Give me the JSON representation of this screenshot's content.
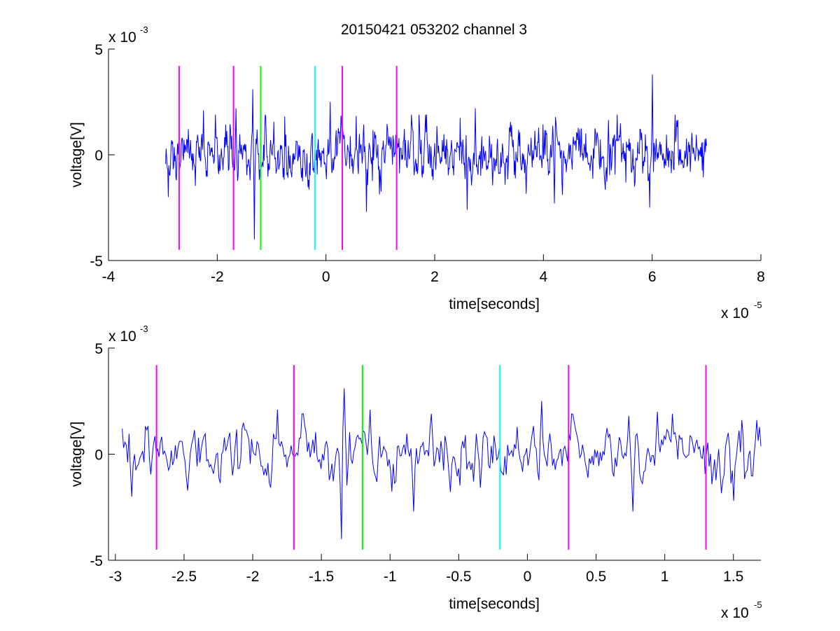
{
  "title": "20150421 053202 channel 3",
  "colors": {
    "trace": "#0000ff",
    "magenta": "#ff00ff",
    "green": "#00ff00",
    "cyan": "#00ffff",
    "axes": "#000000"
  },
  "chart_data": [
    {
      "type": "line",
      "title": "20150421 053202 channel 3",
      "xlabel": "time[seconds]",
      "ylabel": "voltage[V]",
      "x_multiplier": "x 10",
      "x_exponent": "-5",
      "y_multiplier": "x 10",
      "y_exponent": "-3",
      "xlim": [
        -4,
        8
      ],
      "ylim": [
        -5,
        5
      ],
      "xticks": [
        -4,
        -2,
        0,
        2,
        4,
        6,
        8
      ],
      "xtick_labels": [
        "-4",
        "-2",
        "0",
        "2",
        "4",
        "6",
        "8"
      ],
      "yticks": [
        -5,
        0,
        5
      ],
      "ytick_labels": [
        "-5",
        "0",
        "5"
      ],
      "grid": false,
      "trace": {
        "color": "#0000ff",
        "x_start": -2.95,
        "x_end": 7.0,
        "approx_points": 1000,
        "peaks": [
          {
            "x": -2.9,
            "y": -2.0
          },
          {
            "x": -2.25,
            "y": 2.1
          },
          {
            "x": -1.66,
            "y": 2.2
          },
          {
            "x": -1.35,
            "y": 3.1
          },
          {
            "x": -1.32,
            "y": -4.0
          },
          {
            "x": 0.08,
            "y": 2.5
          },
          {
            "x": 0.75,
            "y": -2.7
          },
          {
            "x": 2.6,
            "y": -2.6
          },
          {
            "x": 2.75,
            "y": 2.2
          },
          {
            "x": 4.2,
            "y": -2.3
          },
          {
            "x": 5.95,
            "y": -2.5
          },
          {
            "x": 6.0,
            "y": 3.8
          }
        ]
      },
      "markers": [
        {
          "x": -2.7,
          "color": "#ff00ff",
          "y_range": [
            -4.5,
            4.2
          ]
        },
        {
          "x": -1.7,
          "color": "#ff00ff",
          "y_range": [
            -4.5,
            4.2
          ]
        },
        {
          "x": -1.2,
          "color": "#00ff00",
          "y_range": [
            -4.5,
            4.2
          ]
        },
        {
          "x": -0.2,
          "color": "#00ffff",
          "y_range": [
            -4.5,
            4.2
          ]
        },
        {
          "x": 0.3,
          "color": "#ff00ff",
          "y_range": [
            -4.5,
            4.2
          ]
        },
        {
          "x": 1.3,
          "color": "#ff00ff",
          "y_range": [
            -4.5,
            4.2
          ]
        }
      ]
    },
    {
      "type": "line",
      "title": "",
      "xlabel": "time[seconds]",
      "ylabel": "voltage[V]",
      "x_multiplier": "x 10",
      "x_exponent": "-5",
      "y_multiplier": "x 10",
      "y_exponent": "-3",
      "xlim": [
        -3.05,
        1.7
      ],
      "ylim": [
        -5,
        5
      ],
      "xticks": [
        -3,
        -2.5,
        -2,
        -1.5,
        -1,
        -0.5,
        0,
        0.5,
        1,
        1.5
      ],
      "xtick_labels": [
        "-3",
        "-2.5",
        "-2",
        "-1.5",
        "-1",
        "-0.5",
        "0",
        "0.5",
        "1",
        "1.5"
      ],
      "yticks": [
        -5,
        0,
        5
      ],
      "ytick_labels": [
        "-5",
        "0",
        "5"
      ],
      "grid": false,
      "trace": {
        "color": "#0000ff",
        "x_start": -2.95,
        "x_end": 1.7,
        "approx_points": 470,
        "peaks": [
          {
            "x": -2.95,
            "y": 1.2
          },
          {
            "x": -2.88,
            "y": -2.0
          },
          {
            "x": -1.82,
            "y": 2.1
          },
          {
            "x": -1.35,
            "y": -4.0
          },
          {
            "x": -1.33,
            "y": 3.1
          },
          {
            "x": -1.15,
            "y": 2.1
          },
          {
            "x": -0.83,
            "y": -2.7
          },
          {
            "x": 0.1,
            "y": 2.5
          },
          {
            "x": 0.74,
            "y": 1.8
          },
          {
            "x": 0.77,
            "y": -2.7
          },
          {
            "x": 0.95,
            "y": 2.0
          },
          {
            "x": 1.5,
            "y": -2.2
          }
        ]
      },
      "markers": [
        {
          "x": -2.7,
          "color": "#ff00ff",
          "y_range": [
            -4.5,
            4.2
          ]
        },
        {
          "x": -1.7,
          "color": "#ff00ff",
          "y_range": [
            -4.5,
            4.2
          ]
        },
        {
          "x": -1.2,
          "color": "#00ff00",
          "y_range": [
            -4.5,
            4.2
          ]
        },
        {
          "x": -0.2,
          "color": "#00ffff",
          "y_range": [
            -4.5,
            4.2
          ]
        },
        {
          "x": 0.3,
          "color": "#ff00ff",
          "y_range": [
            -4.5,
            4.2
          ]
        },
        {
          "x": 1.3,
          "color": "#ff00ff",
          "y_range": [
            -4.5,
            4.2
          ]
        }
      ]
    }
  ]
}
